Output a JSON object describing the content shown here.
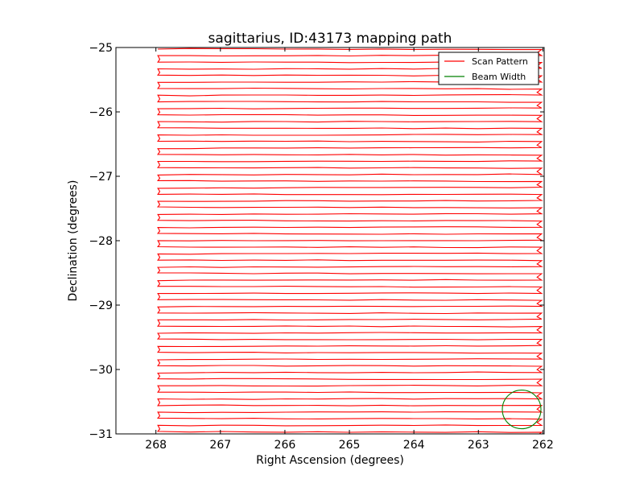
{
  "chart_data": {
    "type": "line",
    "title": "sagittarius, ID:43173 mapping path",
    "xlabel": "Right Ascension (degrees)",
    "ylabel": "Declination (degrees)",
    "xlim": [
      268.62,
      261.98
    ],
    "ylim": [
      -31,
      -25
    ],
    "x_inverted": true,
    "xticks": [
      268,
      267,
      266,
      265,
      264,
      263,
      262
    ],
    "xtick_labels": [
      "268",
      "267",
      "266",
      "265",
      "264",
      "263",
      "262"
    ],
    "yticks": [
      -25,
      -26,
      -27,
      -28,
      -29,
      -30,
      -31
    ],
    "ytick_labels": [
      "−25",
      "−26",
      "−27",
      "−28",
      "−29",
      "−30",
      "−31"
    ],
    "grid": false,
    "legend_position": "top-right",
    "series": [
      {
        "name": "Scan Pattern",
        "color": "#ff0000",
        "pattern": "boustrophedon raster scan",
        "ra_range": [
          267.97,
          262.02
        ],
        "dec_start": -25.02,
        "dec_end": -30.97,
        "row_count": 30,
        "row_spacing_deg": 0.205
      },
      {
        "name": "Beam Width",
        "color": "#008000",
        "center_ra": 262.33,
        "center_dec": -30.62,
        "radius_deg": 0.3
      }
    ]
  }
}
